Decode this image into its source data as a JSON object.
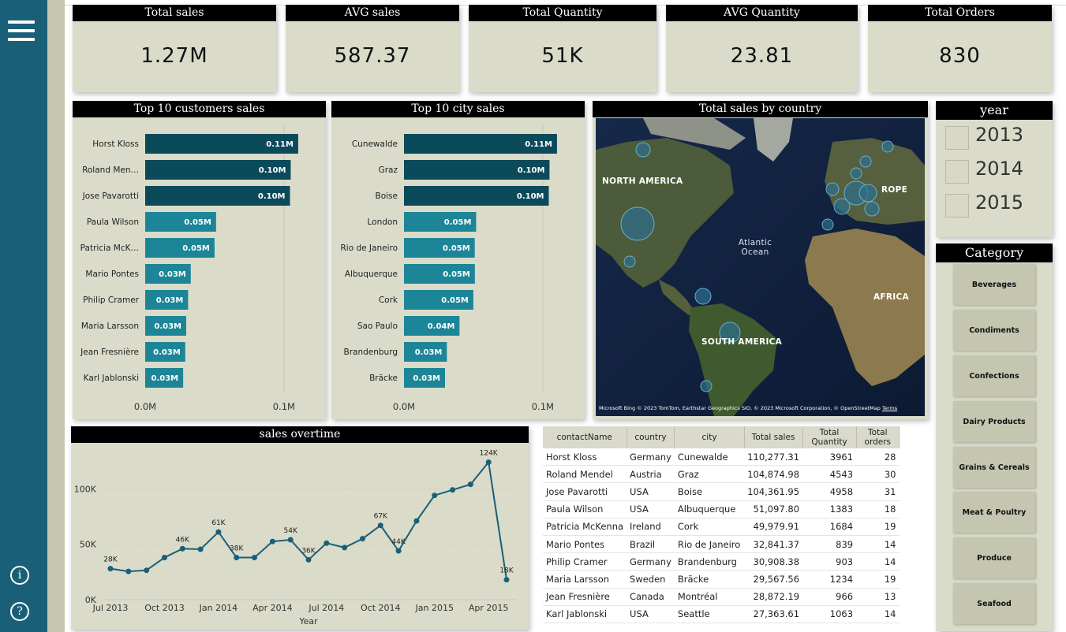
{
  "kpis": [
    {
      "title": "Total sales",
      "value": "1.27M"
    },
    {
      "title": "AVG sales",
      "value": "587.37"
    },
    {
      "title": "Total Quantity",
      "value": "51K"
    },
    {
      "title": "AVG Quantity",
      "value": "23.81"
    },
    {
      "title": "Total Orders",
      "value": "830"
    }
  ],
  "chart_data": [
    {
      "type": "bar",
      "orientation": "horizontal",
      "title": "Top 10 customers sales",
      "categories": [
        "Horst Kloss",
        "Roland Men…",
        "Jose Pavarotti",
        "Paula Wilson",
        "Patricia McK…",
        "Mario Pontes",
        "Philip Cramer",
        "Maria Larsson",
        "Jean Fresnière",
        "Karl Jablonski"
      ],
      "values": [
        110277.31,
        104874.98,
        104361.95,
        51097.8,
        49979.91,
        32841.37,
        30908.38,
        29567.56,
        28872.19,
        27363.61
      ],
      "data_labels": [
        "0.11M",
        "0.10M",
        "0.10M",
        "0.05M",
        "0.05M",
        "0.03M",
        "0.03M",
        "0.03M",
        "0.03M",
        "0.03M"
      ],
      "xticks": [
        "0.0M",
        "0.1M"
      ],
      "xlim": [
        0,
        120000
      ],
      "colors": {
        "dark": "#0b4a5a",
        "light": "#1d8598"
      }
    },
    {
      "type": "bar",
      "orientation": "horizontal",
      "title": "Top 10  city sales",
      "categories": [
        "Cunewalde",
        "Graz",
        "Boise",
        "London",
        "Rio de Janeiro",
        "Albuquerque",
        "Cork",
        "Sao Paulo",
        "Brandenburg",
        "Bräcke"
      ],
      "values": [
        110277.31,
        104874.98,
        104361.95,
        52000,
        51000,
        51097.8,
        49979.91,
        40000,
        30908.38,
        29567.56
      ],
      "data_labels": [
        "0.11M",
        "0.10M",
        "0.10M",
        "0.05M",
        "0.05M",
        "0.05M",
        "0.05M",
        "0.04M",
        "0.03M",
        "0.03M"
      ],
      "xticks": [
        "0.0M",
        "0.1M"
      ],
      "xlim": [
        0,
        120000
      ],
      "colors": {
        "dark": "#0b4a5a",
        "light": "#1d8598"
      }
    },
    {
      "type": "line",
      "title": "sales overtime",
      "xlabel": "Year",
      "x": [
        "2013-07",
        "2013-08",
        "2013-09",
        "2013-10",
        "2013-11",
        "2013-12",
        "2014-01",
        "2014-02",
        "2014-03",
        "2014-04",
        "2014-05",
        "2014-06",
        "2014-07",
        "2014-08",
        "2014-09",
        "2014-10",
        "2014-11",
        "2014-12",
        "2015-01",
        "2015-02",
        "2015-03",
        "2015-04",
        "2015-05"
      ],
      "values": [
        28000,
        25500,
        26500,
        38000,
        46000,
        45500,
        61000,
        38000,
        38000,
        52500,
        54000,
        36000,
        51000,
        47000,
        55000,
        67000,
        44000,
        71000,
        94000,
        99000,
        104000,
        124000,
        18000
      ],
      "data_labels": {
        "0": "28K",
        "4": "46K",
        "6": "61K",
        "7": "38K",
        "10": "54K",
        "11": "36K",
        "15": "67K",
        "16": "44K",
        "21": "124K",
        "22": "18K"
      },
      "xticks": [
        "Jul 2013",
        "Oct 2013",
        "Jan 2014",
        "Apr 2014",
        "Jul 2014",
        "Oct 2014",
        "Jan 2015",
        "Apr 2015"
      ],
      "yticks": [
        "0K",
        "50K",
        "100K"
      ],
      "ylim": [
        0,
        135000
      ],
      "color": "#1a5f78"
    },
    {
      "type": "table",
      "columns": [
        "contactName",
        "country",
        "city",
        "Total sales",
        "Total Quantity",
        "Total orders"
      ],
      "rows": [
        [
          "Horst Kloss",
          "Germany",
          "Cunewalde",
          "110,277.31",
          "3961",
          "28"
        ],
        [
          "Roland Mendel",
          "Austria",
          "Graz",
          "104,874.98",
          "4543",
          "30"
        ],
        [
          "Jose Pavarotti",
          "USA",
          "Boise",
          "104,361.95",
          "4958",
          "31"
        ],
        [
          "Paula Wilson",
          "USA",
          "Albuquerque",
          "51,097.80",
          "1383",
          "18"
        ],
        [
          "Patricia McKenna",
          "Ireland",
          "Cork",
          "49,979.91",
          "1684",
          "19"
        ],
        [
          "Mario Pontes",
          "Brazil",
          "Rio de Janeiro",
          "32,841.37",
          "839",
          "14"
        ],
        [
          "Philip Cramer",
          "Germany",
          "Brandenburg",
          "30,908.38",
          "903",
          "14"
        ],
        [
          "Maria Larsson",
          "Sweden",
          "Bräcke",
          "29,567.56",
          "1234",
          "19"
        ],
        [
          "Jean Fresnière",
          "Canada",
          "Montréal",
          "28,872.19",
          "966",
          "13"
        ],
        [
          "Karl Jablonski",
          "USA",
          "Seattle",
          "27,363.61",
          "1063",
          "14"
        ]
      ]
    }
  ],
  "map": {
    "title": "Total sales by country",
    "labels": [
      "NORTH AMERICA",
      "Atlantic Ocean",
      "ROPE",
      "AFRICA",
      "SOUTH AMERICA"
    ],
    "attribution": "© 2023 TomTom, Earthstar Geographics SIO, © 2023 Microsoft Corporation, © OpenStreetMap",
    "terms": "Terms",
    "brand": "Microsoft Bing"
  },
  "year_slicer": {
    "title": "year",
    "items": [
      "2013",
      "2014",
      "2015"
    ]
  },
  "category_slicer": {
    "title": "Category",
    "items": [
      "Beverages",
      "Condiments",
      "Confections",
      "Dairy Products",
      "Grains & Cereals",
      "Meat & Poultry",
      "Produce",
      "Seafood"
    ]
  }
}
